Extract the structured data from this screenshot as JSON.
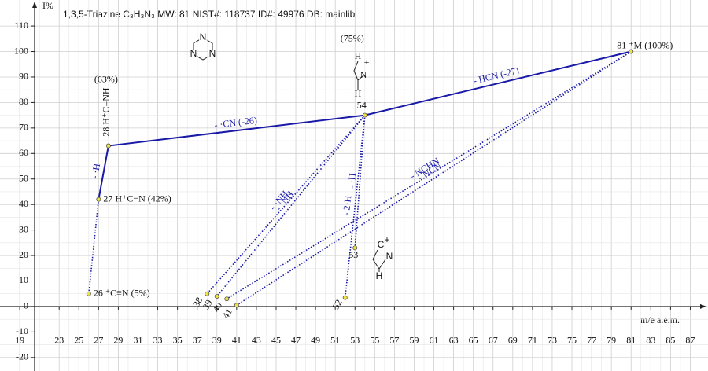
{
  "chart_data": {
    "type": "fragmentation",
    "title": "1,3,5-Triazine  C₃H₃N₃  MW: 81 NIST#: 118737 ID#: 49976 DB: mainlib",
    "y_label": "I%",
    "x_label": "m/e a.e.m.",
    "xlim": [
      17,
      88.8
    ],
    "ylim": [
      -25.3,
      120.2
    ],
    "xticks": [
      19,
      23,
      25,
      27,
      29,
      31,
      33,
      35,
      37,
      39,
      41,
      43,
      45,
      47,
      49,
      51,
      53,
      55,
      57,
      59,
      61,
      63,
      65,
      67,
      69,
      71,
      73,
      75,
      77,
      79,
      81,
      83,
      85,
      87
    ],
    "yticks": [
      -20,
      -10,
      0,
      10,
      20,
      30,
      40,
      50,
      60,
      70,
      80,
      90,
      100,
      110
    ],
    "grid": true,
    "line_color": "#1a1aa8",
    "point_color": "#f0e040",
    "peaks": [
      {
        "mz": 81,
        "i": 100,
        "label": "81 ⁺M (100%)"
      },
      {
        "mz": 54,
        "i": 75,
        "label": "54",
        "pct": "(75%)",
        "from": 81,
        "loss": "- HCN (-27)",
        "style": "solid"
      },
      {
        "mz": 28,
        "i": 63,
        "label": "28 H⁺C=NH",
        "pct": "(63%)",
        "from": 54,
        "loss": "- ·CN (-26)",
        "style": "solid"
      },
      {
        "mz": 27,
        "i": 42,
        "label": "27 H⁺C≡N (42%)",
        "from": 28,
        "loss": "- ·H",
        "style": "solid"
      },
      {
        "mz": 26,
        "i": 5,
        "label": "26 ⁺C≡N (5%)",
        "from": 27,
        "style": "dotted"
      },
      {
        "mz": 38,
        "i": 5,
        "label": "38",
        "from": 54,
        "loss": "- ·NH₂",
        "style": "dotted"
      },
      {
        "mz": 39,
        "i": 4,
        "label": "39",
        "from": 54,
        "loss": "- ·NH",
        "style": "dotted"
      },
      {
        "mz": 40,
        "i": 3,
        "label": "40",
        "from": 81,
        "loss": "- NCHN",
        "style": "dotted"
      },
      {
        "mz": 41,
        "i": 0.5,
        "label": "41",
        "from": 81,
        "loss": "- NCN",
        "style": "dotted"
      },
      {
        "mz": 53,
        "i": 23,
        "label": "53",
        "from": 54,
        "loss": "- ·H",
        "style": "dotted"
      },
      {
        "mz": 52,
        "i": 3.5,
        "label": "52",
        "from": 54,
        "loss": "- 2·H",
        "style": "dotted"
      }
    ],
    "structures": {
      "triazine": [
        "N",
        "N",
        "N"
      ],
      "ion54": [
        "H",
        "+",
        "N",
        "H"
      ],
      "ion53": [
        "C",
        "+",
        "N",
        "H"
      ]
    }
  }
}
